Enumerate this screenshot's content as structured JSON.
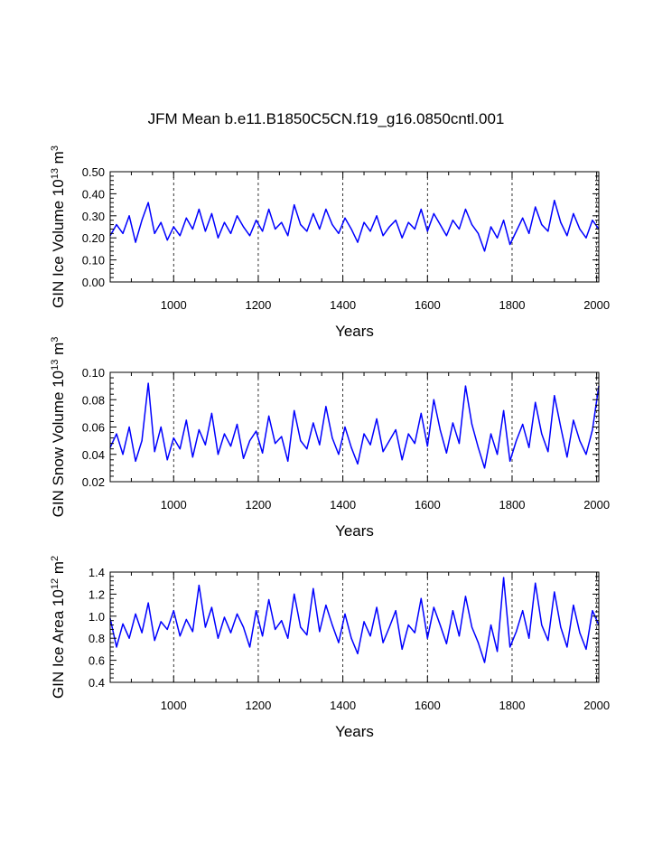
{
  "title": "JFM Mean b.e11.B1850C5CN.f19_g16.0850cntl.001",
  "series_color": "#0000ff",
  "chart_data": [
    {
      "type": "line",
      "title": "JFM Mean b.e11.B1850C5CN.f19_g16.0850cntl.001",
      "xlabel": "Years",
      "ylabel_parts": [
        "GIN Ice Volume 10",
        "13",
        " m",
        "3"
      ],
      "ylabel_text": "GIN Ice Volume 10^13 m^3",
      "xlim": [
        850,
        2005
      ],
      "ylim": [
        0.0,
        0.5
      ],
      "xticks": [
        1000,
        1200,
        1400,
        1600,
        1800,
        2000
      ],
      "xticklabels": [
        "1000",
        "1200",
        "1400",
        "1600",
        "1800",
        "2000"
      ],
      "yticks": [
        0.0,
        0.1,
        0.2,
        0.3,
        0.4,
        0.5
      ],
      "yticklabels": [
        "0.00",
        "0.10",
        "0.20",
        "0.30",
        "0.40",
        "0.50"
      ],
      "x": [
        850,
        865,
        880,
        895,
        910,
        925,
        940,
        955,
        970,
        985,
        1000,
        1015,
        1030,
        1045,
        1060,
        1075,
        1090,
        1105,
        1120,
        1135,
        1150,
        1165,
        1180,
        1195,
        1210,
        1225,
        1240,
        1255,
        1270,
        1285,
        1300,
        1315,
        1330,
        1345,
        1360,
        1375,
        1390,
        1405,
        1420,
        1435,
        1450,
        1465,
        1480,
        1495,
        1510,
        1525,
        1540,
        1555,
        1570,
        1585,
        1600,
        1615,
        1630,
        1645,
        1660,
        1675,
        1690,
        1705,
        1720,
        1735,
        1750,
        1765,
        1780,
        1795,
        1810,
        1825,
        1840,
        1855,
        1870,
        1885,
        1900,
        1915,
        1930,
        1945,
        1960,
        1975,
        1990,
        2005
      ],
      "series": [
        {
          "name": "GIN Ice Volume",
          "values": [
            0.21,
            0.26,
            0.22,
            0.3,
            0.18,
            0.28,
            0.36,
            0.22,
            0.27,
            0.19,
            0.25,
            0.21,
            0.29,
            0.24,
            0.33,
            0.23,
            0.31,
            0.2,
            0.27,
            0.22,
            0.3,
            0.25,
            0.21,
            0.28,
            0.23,
            0.33,
            0.24,
            0.27,
            0.21,
            0.35,
            0.26,
            0.23,
            0.31,
            0.24,
            0.33,
            0.26,
            0.22,
            0.29,
            0.24,
            0.18,
            0.27,
            0.23,
            0.3,
            0.21,
            0.25,
            0.28,
            0.2,
            0.27,
            0.24,
            0.33,
            0.23,
            0.31,
            0.26,
            0.21,
            0.28,
            0.24,
            0.33,
            0.26,
            0.22,
            0.14,
            0.25,
            0.2,
            0.28,
            0.17,
            0.23,
            0.29,
            0.22,
            0.34,
            0.26,
            0.23,
            0.37,
            0.27,
            0.21,
            0.31,
            0.24,
            0.2,
            0.28,
            0.24
          ]
        }
      ]
    },
    {
      "type": "line",
      "title": "",
      "xlabel": "Years",
      "ylabel_parts": [
        "GIN Snow Volume 10",
        "13",
        " m",
        "3"
      ],
      "ylabel_text": "GIN Snow Volume 10^13 m^3",
      "xlim": [
        850,
        2005
      ],
      "ylim": [
        0.02,
        0.1
      ],
      "xticks": [
        1000,
        1200,
        1400,
        1600,
        1800,
        2000
      ],
      "xticklabels": [
        "1000",
        "1200",
        "1400",
        "1600",
        "1800",
        "2000"
      ],
      "yticks": [
        0.02,
        0.04,
        0.06,
        0.08,
        0.1
      ],
      "yticklabels": [
        "0.02",
        "0.04",
        "0.06",
        "0.08",
        "0.10"
      ],
      "x": [
        850,
        865,
        880,
        895,
        910,
        925,
        940,
        955,
        970,
        985,
        1000,
        1015,
        1030,
        1045,
        1060,
        1075,
        1090,
        1105,
        1120,
        1135,
        1150,
        1165,
        1180,
        1195,
        1210,
        1225,
        1240,
        1255,
        1270,
        1285,
        1300,
        1315,
        1330,
        1345,
        1360,
        1375,
        1390,
        1405,
        1420,
        1435,
        1450,
        1465,
        1480,
        1495,
        1510,
        1525,
        1540,
        1555,
        1570,
        1585,
        1600,
        1615,
        1630,
        1645,
        1660,
        1675,
        1690,
        1705,
        1720,
        1735,
        1750,
        1765,
        1780,
        1795,
        1810,
        1825,
        1840,
        1855,
        1870,
        1885,
        1900,
        1915,
        1930,
        1945,
        1960,
        1975,
        1990,
        2005
      ],
      "series": [
        {
          "name": "GIN Snow Volume",
          "values": [
            0.045,
            0.055,
            0.04,
            0.06,
            0.035,
            0.05,
            0.092,
            0.042,
            0.06,
            0.036,
            0.052,
            0.044,
            0.065,
            0.038,
            0.058,
            0.047,
            0.07,
            0.04,
            0.055,
            0.046,
            0.062,
            0.037,
            0.05,
            0.057,
            0.041,
            0.068,
            0.048,
            0.053,
            0.035,
            0.072,
            0.05,
            0.044,
            0.063,
            0.047,
            0.075,
            0.052,
            0.04,
            0.06,
            0.045,
            0.033,
            0.055,
            0.047,
            0.066,
            0.042,
            0.05,
            0.058,
            0.036,
            0.055,
            0.048,
            0.07,
            0.046,
            0.08,
            0.058,
            0.041,
            0.063,
            0.048,
            0.09,
            0.062,
            0.045,
            0.03,
            0.055,
            0.04,
            0.072,
            0.035,
            0.05,
            0.062,
            0.045,
            0.078,
            0.055,
            0.042,
            0.083,
            0.06,
            0.038,
            0.065,
            0.05,
            0.04,
            0.058,
            0.09
          ]
        }
      ]
    },
    {
      "type": "line",
      "title": "",
      "xlabel": "Years",
      "ylabel_parts": [
        "GIN Ice Area 10",
        "12",
        " m",
        "2"
      ],
      "ylabel_text": "GIN Ice Area 10^12 m^2",
      "xlim": [
        850,
        2005
      ],
      "ylim": [
        0.4,
        1.4
      ],
      "xticks": [
        1000,
        1200,
        1400,
        1600,
        1800,
        2000
      ],
      "xticklabels": [
        "1000",
        "1200",
        "1400",
        "1600",
        "1800",
        "2000"
      ],
      "yticks": [
        0.4,
        0.6,
        0.8,
        1.0,
        1.2,
        1.4
      ],
      "yticklabels": [
        "0.4",
        "0.6",
        "0.8",
        "1.0",
        "1.2",
        "1.4"
      ],
      "x": [
        850,
        865,
        880,
        895,
        910,
        925,
        940,
        955,
        970,
        985,
        1000,
        1015,
        1030,
        1045,
        1060,
        1075,
        1090,
        1105,
        1120,
        1135,
        1150,
        1165,
        1180,
        1195,
        1210,
        1225,
        1240,
        1255,
        1270,
        1285,
        1300,
        1315,
        1330,
        1345,
        1360,
        1375,
        1390,
        1405,
        1420,
        1435,
        1450,
        1465,
        1480,
        1495,
        1510,
        1525,
        1540,
        1555,
        1570,
        1585,
        1600,
        1615,
        1630,
        1645,
        1660,
        1675,
        1690,
        1705,
        1720,
        1735,
        1750,
        1765,
        1780,
        1795,
        1810,
        1825,
        1840,
        1855,
        1870,
        1885,
        1900,
        1915,
        1930,
        1945,
        1960,
        1975,
        1990,
        2005
      ],
      "series": [
        {
          "name": "GIN Ice Area",
          "values": [
            0.98,
            0.72,
            0.93,
            0.8,
            1.02,
            0.85,
            1.12,
            0.78,
            0.95,
            0.88,
            1.05,
            0.82,
            0.97,
            0.86,
            1.28,
            0.9,
            1.08,
            0.8,
            0.99,
            0.85,
            1.02,
            0.9,
            0.72,
            1.05,
            0.82,
            1.15,
            0.88,
            0.96,
            0.8,
            1.2,
            0.9,
            0.83,
            1.25,
            0.86,
            1.1,
            0.92,
            0.76,
            1.02,
            0.8,
            0.66,
            0.95,
            0.82,
            1.08,
            0.76,
            0.9,
            1.05,
            0.7,
            0.92,
            0.85,
            1.16,
            0.8,
            1.08,
            0.92,
            0.75,
            1.05,
            0.82,
            1.18,
            0.9,
            0.76,
            0.58,
            0.92,
            0.68,
            1.35,
            0.72,
            0.86,
            1.05,
            0.8,
            1.3,
            0.92,
            0.78,
            1.22,
            0.9,
            0.72,
            1.1,
            0.85,
            0.7,
            1.05,
            0.92
          ]
        }
      ]
    }
  ]
}
